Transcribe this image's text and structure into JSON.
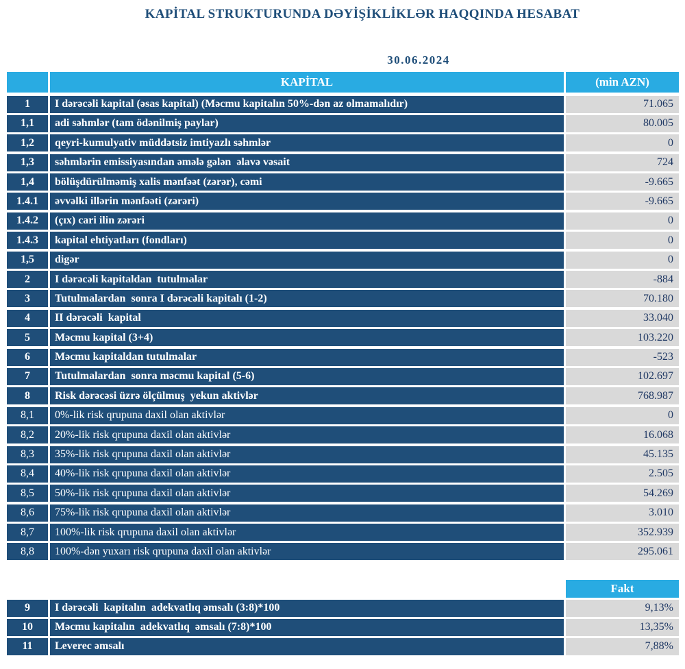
{
  "colors": {
    "navy": "#1F4E79",
    "cyan": "#29ABE2",
    "gray": "#D9D9D9",
    "value_text": "#1F3864",
    "heading": "#1F4E79"
  },
  "report": {
    "title": "KAPİTAL STRUKTURUNDA DƏYİŞİKLİKLƏR HAQQINDA HESABAT",
    "date": "30.06.2024"
  },
  "table": {
    "header": {
      "num": "",
      "label": "KAPİTAL",
      "value": "(min AZN)"
    },
    "rows": [
      {
        "num": "1",
        "label": "I dərəcəli kapital (əsas kapital) (Məcmu kapitalın 50%-dən az olmamalıdır)",
        "value": "71.065",
        "bold": true
      },
      {
        "num": "1,1",
        "label": "adi səhmlər (tam ödənilmiş paylar)",
        "value": "80.005",
        "bold": true
      },
      {
        "num": "1,2",
        "label": "qeyri-kumulyativ müddətsiz imtiyazlı səhmlər",
        "value": "0",
        "bold": true
      },
      {
        "num": "1,3",
        "label": "səhmlərin emissiyasından əmələ gələn  əlavə vəsait",
        "value": "724",
        "bold": true
      },
      {
        "num": "1,4",
        "label": "bölüşdürülməmiş xalis mənfəət (zərər), cəmi",
        "value": "-9.665",
        "bold": true
      },
      {
        "num": "1.4.1",
        "label": "əvvəlki illərin mənfəəti (zərəri)",
        "value": "-9.665",
        "bold": true
      },
      {
        "num": "1.4.2",
        "label": "(çıx) cari ilin zərəri",
        "value": "0",
        "bold": true
      },
      {
        "num": "1.4.3",
        "label": "kapital ehtiyatları (fondları)",
        "value": "0",
        "bold": true
      },
      {
        "num": "1,5",
        "label": "digər",
        "value": "0",
        "bold": true
      },
      {
        "num": "2",
        "label": "I dərəcəli kapitaldan  tutulmalar",
        "value": "-884",
        "bold": true
      },
      {
        "num": "3",
        "label": "Tutulmalardan  sonra I dərəcəli kapitalı (1-2)",
        "value": "70.180",
        "bold": true
      },
      {
        "num": "4",
        "label": "II dərəcəli  kapital",
        "value": "33.040",
        "bold": true
      },
      {
        "num": "5",
        "label": "Məcmu kapital (3+4)",
        "value": "103.220",
        "bold": true
      },
      {
        "num": "6",
        "label": "Məcmu kapitaldan tutulmalar",
        "value": "-523",
        "bold": true
      },
      {
        "num": "7",
        "label": "Tutulmalardan  sonra məcmu kapital (5-6)",
        "value": "102.697",
        "bold": true
      },
      {
        "num": "8",
        "label": "Risk dərəcəsi üzrə ölçülmuş  yekun aktivlər",
        "value": "768.987",
        "bold": true
      },
      {
        "num": "8,1",
        "label": "0%-lik risk qrupuna daxil olan aktivlər",
        "value": "0",
        "bold": false
      },
      {
        "num": "8,2",
        "label": "20%-lik risk qrupuna daxil olan aktivlər",
        "value": "16.068",
        "bold": false
      },
      {
        "num": "8,3",
        "label": "35%-lik risk qrupuna daxil olan aktivlər",
        "value": "45.135",
        "bold": false
      },
      {
        "num": "8,4",
        "label": "40%-lik risk qrupuna daxil olan aktivlər",
        "value": "2.505",
        "bold": false
      },
      {
        "num": "8,5",
        "label": "50%-lik risk qrupuna daxil olan aktivlər",
        "value": "54.269",
        "bold": false
      },
      {
        "num": "8,6",
        "label": "75%-lik risk qrupuna daxil olan aktivlər",
        "value": "3.010",
        "bold": false
      },
      {
        "num": "8,7",
        "label": "100%-lik risk qrupuna daxil olan aktivlər",
        "value": "352.939",
        "bold": false
      },
      {
        "num": "8,8",
        "label": "100%-dən yuxarı risk qrupuna daxil olan aktivlər",
        "value": "295.061",
        "bold": false
      }
    ]
  },
  "ratios": {
    "header": "Fakt",
    "rows": [
      {
        "num": "9",
        "label": "I dərəcəli  kapitalın  adekvatlıq əmsalı (3:8)*100",
        "value": "9,13%",
        "bold": true
      },
      {
        "num": "10",
        "label": "Məcmu kapitalın  adekvatlıq  əmsalı (7:8)*100",
        "value": "13,35%",
        "bold": true
      },
      {
        "num": "11",
        "label": "Leverec əmsalı",
        "value": "7,88%",
        "bold": true
      }
    ]
  }
}
